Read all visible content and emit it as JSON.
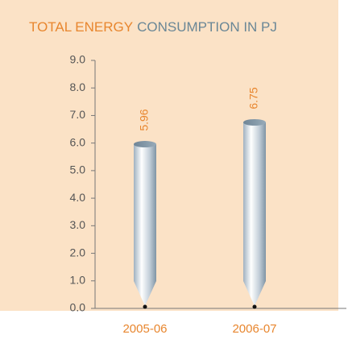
{
  "chart_data": {
    "type": "bar",
    "title": [
      {
        "text": "TOTAL ENERGY",
        "color": "#e8862e"
      },
      {
        "text": "CONSUMPTION IN PJ",
        "color": "#6a8796"
      }
    ],
    "categories": [
      "2005-06",
      "2006-07"
    ],
    "values": [
      5.96,
      6.75
    ],
    "ylim": [
      0,
      9
    ],
    "yticks": [
      {
        "value": 0,
        "label": "0.0"
      },
      {
        "value": 1,
        "label": "1.0"
      },
      {
        "value": 2,
        "label": "2.0"
      },
      {
        "value": 3,
        "label": "3.0"
      },
      {
        "value": 4,
        "label": "4.0"
      },
      {
        "value": 5,
        "label": "5.0"
      },
      {
        "value": 6,
        "label": "6.0"
      },
      {
        "value": 7,
        "label": "7.0"
      },
      {
        "value": 8,
        "label": "8.0"
      },
      {
        "value": 9,
        "label": "9.0"
      }
    ],
    "label_color": "#e8862e"
  }
}
